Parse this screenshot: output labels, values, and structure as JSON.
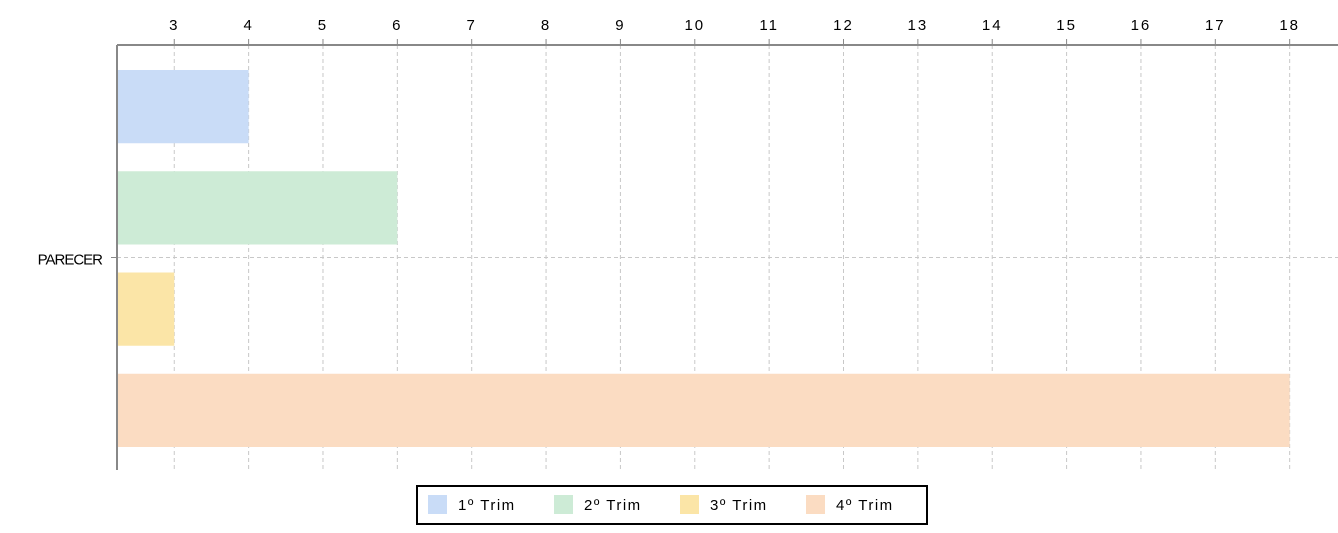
{
  "chart_data": {
    "type": "bar",
    "orientation": "horizontal",
    "categories": [
      "PARECER"
    ],
    "series": [
      {
        "name": "1º Trim",
        "color": "#c9dcf7",
        "values": [
          4
        ]
      },
      {
        "name": "2º Trim",
        "color": "#cdebd6",
        "values": [
          6
        ]
      },
      {
        "name": "3º Trim",
        "color": "#fbe5a7",
        "values": [
          3
        ]
      },
      {
        "name": "4º Trim",
        "color": "#fbdcc2",
        "values": [
          18
        ]
      }
    ],
    "xlim": [
      2.23,
      18.65
    ],
    "xticks": [
      3,
      4,
      5,
      6,
      7,
      8,
      9,
      10,
      11,
      12,
      13,
      14,
      15,
      16,
      17,
      18
    ],
    "grid": true,
    "legend": "bottom"
  }
}
